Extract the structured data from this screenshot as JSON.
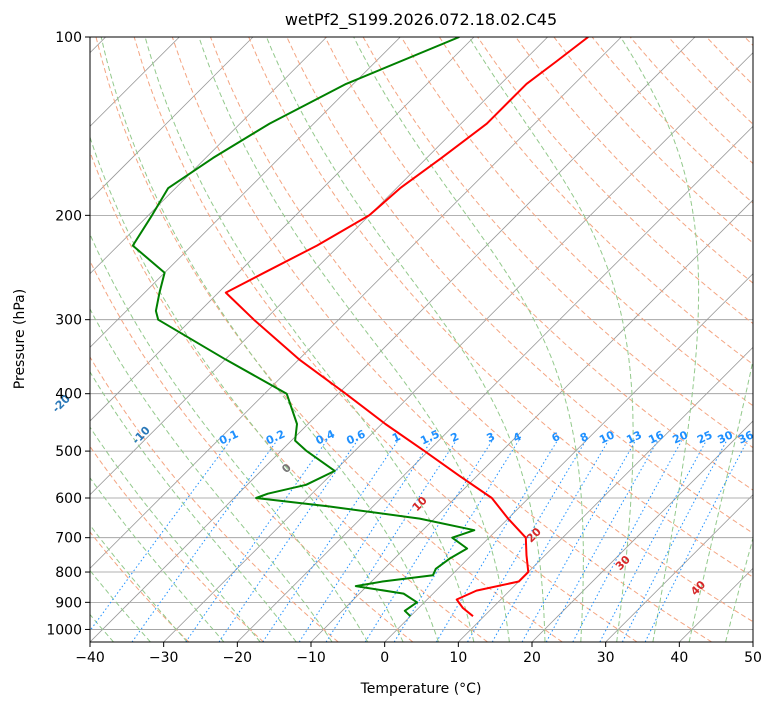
{
  "chart_data": {
    "type": "line",
    "subtype": "skew-t log-p",
    "title": "wetPf2_S199.2026.072.18.02.C45",
    "xlabel": "Temperature (°C)",
    "ylabel": "Pressure (hPa)",
    "xlim": [
      -40,
      50
    ],
    "ylim": [
      1050,
      100
    ],
    "y_scale": "log",
    "grid": true,
    "x_ticks": [
      -40,
      -30,
      -20,
      -10,
      0,
      10,
      20,
      30,
      40,
      50
    ],
    "x_tick_labels": [
      "−40",
      "−30",
      "−20",
      "−10",
      "0",
      "10",
      "20",
      "30",
      "40",
      "50"
    ],
    "y_ticks": [
      100,
      200,
      300,
      400,
      500,
      600,
      700,
      800,
      900,
      1000
    ],
    "y_tick_labels": [
      "100",
      "200",
      "300",
      "400",
      "500",
      "600",
      "700",
      "800",
      "900",
      "1000"
    ],
    "series": [
      {
        "color": "#ff0000",
        "points": [
          [
            100,
            -54.5
          ],
          [
            110,
            -55.5
          ],
          [
            120,
            -56.5
          ],
          [
            140,
            -56.5
          ],
          [
            160,
            -58
          ],
          [
            180,
            -59.5
          ],
          [
            200,
            -60
          ],
          [
            225,
            -63
          ],
          [
            250,
            -66.5
          ],
          [
            270,
            -69
          ],
          [
            300,
            -61.5
          ],
          [
            350,
            -50
          ],
          [
            400,
            -39
          ],
          [
            450,
            -29.5
          ],
          [
            500,
            -20.5
          ],
          [
            550,
            -12.5
          ],
          [
            600,
            -5
          ],
          [
            650,
            0
          ],
          [
            700,
            5
          ],
          [
            750,
            7.5
          ],
          [
            800,
            10
          ],
          [
            830,
            10
          ],
          [
            860,
            5.5
          ],
          [
            890,
            4
          ],
          [
            920,
            6
          ],
          [
            950,
            8.5
          ]
        ]
      },
      {
        "color": "#008000",
        "points": [
          [
            100,
            -72
          ],
          [
            120,
            -81
          ],
          [
            140,
            -86
          ],
          [
            160,
            -89
          ],
          [
            180,
            -91
          ],
          [
            200,
            -89.5
          ],
          [
            225,
            -88
          ],
          [
            250,
            -80
          ],
          [
            270,
            -78
          ],
          [
            290,
            -76
          ],
          [
            300,
            -74.5
          ],
          [
            350,
            -60
          ],
          [
            400,
            -47
          ],
          [
            450,
            -41.5
          ],
          [
            480,
            -39.5
          ],
          [
            500,
            -36.5
          ],
          [
            540,
            -30
          ],
          [
            570,
            -32
          ],
          [
            590,
            -36
          ],
          [
            600,
            -37
          ],
          [
            620,
            -26
          ],
          [
            650,
            -12
          ],
          [
            680,
            -3
          ],
          [
            700,
            -5
          ],
          [
            730,
            -1.5
          ],
          [
            760,
            -2.5
          ],
          [
            790,
            -3
          ],
          [
            810,
            -2.5
          ],
          [
            830,
            -8.5
          ],
          [
            845,
            -11.5
          ],
          [
            870,
            -4
          ],
          [
            900,
            -1
          ],
          [
            930,
            -1.5
          ],
          [
            950,
            0
          ]
        ]
      }
    ],
    "dry_adiabats_c": [
      -100,
      -90,
      -80,
      -70,
      -60,
      -50,
      -40,
      -30,
      -20,
      -10
    ],
    "moist_adiabats_c": [
      0,
      10,
      20,
      30,
      40
    ],
    "mixing_ratio_lines": [
      0.1,
      0.2,
      0.4,
      0.6,
      1,
      1.5,
      2,
      3,
      4,
      6,
      8,
      10,
      13,
      16,
      20,
      25,
      30,
      36
    ],
    "colors": {
      "temperature": "#ff0000",
      "dewpoint": "#008000",
      "dry_adiabat": "#f4a582",
      "moist_adiabat": "#93c98c",
      "mixing_ratio": "#1e90ff",
      "dry_adiabat_label": "#2a78b8",
      "moist_adiabat_label": "#d62728",
      "isotherm": "#999999",
      "isobar": "#999999"
    }
  }
}
